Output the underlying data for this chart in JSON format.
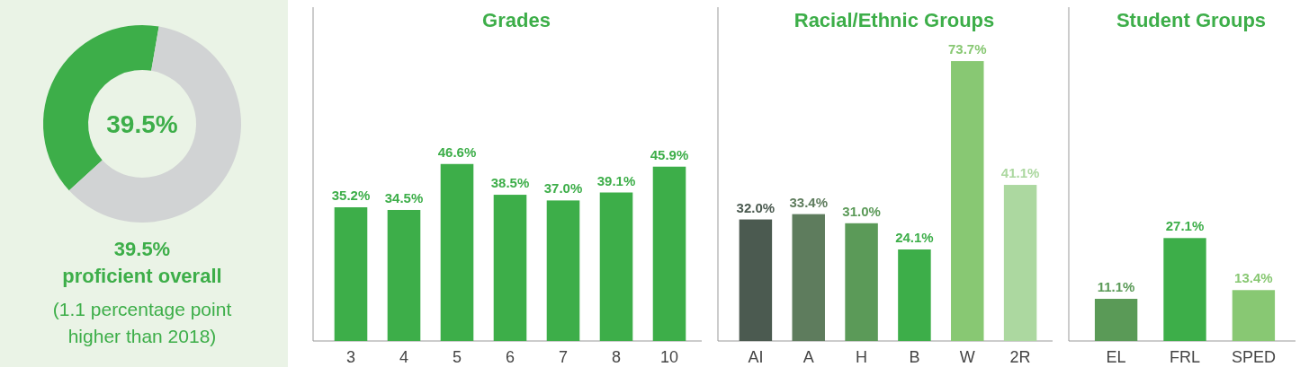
{
  "chart_data": [
    {
      "type": "donut",
      "categories": [
        null,
        null
      ],
      "values": [
        39.5,
        60.5
      ],
      "colors": [
        "#3dae49",
        "#d1d3d4"
      ],
      "annotations": [
        "39.5%",
        "39.5%\nproficient overall",
        "(1.1 percentage point\nhigher than 2018)"
      ]
    },
    {
      "type": "bar",
      "title": "Grades",
      "categories": [
        "3",
        "4",
        "5",
        "6",
        "7",
        "8",
        "10"
      ],
      "values": [
        35.2,
        34.5,
        46.6,
        38.5,
        37.0,
        39.1,
        45.9
      ],
      "colors": [
        "#3dae49",
        "#3dae49",
        "#3dae49",
        "#3dae49",
        "#3dae49",
        "#3dae49",
        "#3dae49"
      ],
      "value_labels": [
        "35.2%",
        "34.5%",
        "46.6%",
        "38.5%",
        "37.0%",
        "39.1%",
        "45.9%"
      ]
    },
    {
      "type": "bar",
      "title": "Racial/Ethnic Groups",
      "categories": [
        "AI",
        "A",
        "H",
        "B",
        "W",
        "2R"
      ],
      "values": [
        32.0,
        33.4,
        31.0,
        24.1,
        73.7,
        41.1
      ],
      "colors": [
        "#4b5a50",
        "#5e7c5d",
        "#5b9a58",
        "#3dae49",
        "#88c873",
        "#acd8a0"
      ],
      "value_labels": [
        "32.0%",
        "33.4%",
        "31.0%",
        "24.1%",
        "73.7%",
        "41.1%"
      ]
    },
    {
      "type": "bar",
      "title": "Student Groups",
      "categories": [
        "EL",
        "FRL",
        "SPED"
      ],
      "values": [
        11.1,
        27.1,
        13.4
      ],
      "colors": [
        "#5a9a57",
        "#3dae49",
        "#88c873"
      ],
      "value_labels": [
        "11.1%",
        "27.1%",
        "13.4%"
      ]
    }
  ]
}
